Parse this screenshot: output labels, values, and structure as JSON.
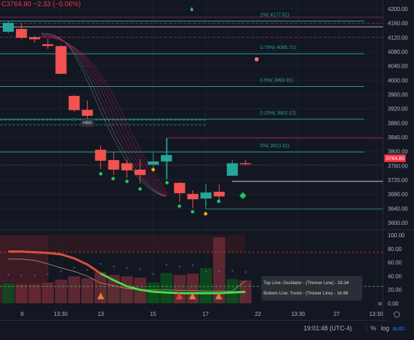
{
  "header": {
    "legend_text": "C3764.80 −2.33 (−0.06%)"
  },
  "colors": {
    "up": "#26a69a",
    "down": "#f05350",
    "fib": "#26a69a",
    "bg": "#131722"
  },
  "price_axis": {
    "ticks": [
      "4200.00",
      "4160.00",
      "4120.00",
      "4080.00",
      "4040.00",
      "4000.00",
      "3960.00",
      "3920.00",
      "3880.00",
      "3840.00",
      "3800.00",
      "3760.00",
      "3720.00",
      "3680.00",
      "3640.00",
      "3600.00"
    ],
    "current_price": "3764.80"
  },
  "osc_axis": {
    "ticks": [
      "100.00",
      "80.00",
      "60.00",
      "40.00",
      "20.00",
      "0.00"
    ]
  },
  "time_axis": {
    "ticks": [
      "8",
      "13:30",
      "13",
      "15",
      "17",
      "22",
      "13:30",
      "27",
      "13:30"
    ]
  },
  "fib_levels": [
    {
      "label": "1%( 4177.51)",
      "price": 4177.51
    },
    {
      "label": "0.75%( 4085.71)",
      "price": 4085.71
    },
    {
      "label": "0.5%( 3993.91)",
      "price": 3993.91
    },
    {
      "label": "0.25%( 3902.12)",
      "price": 3902.12
    },
    {
      "label": "0%( 3810.32)",
      "price": 3810.32
    }
  ],
  "marker_label": "HBD",
  "chart_data": {
    "type": "candlestick",
    "ylim": [
      3580,
      4220
    ],
    "candles": [
      {
        "o": 4136,
        "h": 4165,
        "l": 4132,
        "c": 4161
      },
      {
        "o": 4144,
        "h": 4159,
        "l": 4115,
        "c": 4119
      },
      {
        "o": 4121,
        "h": 4125,
        "l": 4105,
        "c": 4115
      },
      {
        "o": 4101,
        "h": 4117,
        "l": 4088,
        "c": 4096
      },
      {
        "o": 4096,
        "h": 4098,
        "l": 4018,
        "c": 4018
      },
      {
        "o": 3956,
        "h": 3958,
        "l": 3912,
        "c": 3916
      },
      {
        "o": 3917,
        "h": 3943,
        "l": 3892,
        "c": 3900
      },
      {
        "o": 3805,
        "h": 3817,
        "l": 3751,
        "c": 3774
      },
      {
        "o": 3776,
        "h": 3799,
        "l": 3734,
        "c": 3749
      },
      {
        "o": 3767,
        "h": 3778,
        "l": 3726,
        "c": 3747
      },
      {
        "o": 3749,
        "h": 3778,
        "l": 3710,
        "c": 3734
      },
      {
        "o": 3763,
        "h": 3796,
        "l": 3745,
        "c": 3772
      },
      {
        "o": 3772,
        "h": 3838,
        "l": 3722,
        "c": 3790
      },
      {
        "o": 3712,
        "h": 3714,
        "l": 3658,
        "c": 3683
      },
      {
        "o": 3681,
        "h": 3691,
        "l": 3641,
        "c": 3666
      },
      {
        "o": 3668,
        "h": 3709,
        "l": 3645,
        "c": 3685
      },
      {
        "o": 3687,
        "h": 3707,
        "l": 3664,
        "c": 3674
      },
      {
        "o": 3732,
        "h": 3776,
        "l": 3732,
        "c": 3767
      },
      {
        "o": 3767,
        "h": 3776,
        "l": 3761,
        "c": 3765
      }
    ],
    "oscillator": {
      "ylim": [
        0,
        100
      ],
      "bars": [
        30,
        29,
        29,
        31,
        35,
        40,
        37,
        46,
        42,
        40,
        38,
        31,
        45,
        42,
        44,
        52,
        97,
        36,
        34
      ],
      "bar_up": [
        true,
        false,
        false,
        false,
        false,
        false,
        false,
        false,
        false,
        false,
        false,
        true,
        true,
        false,
        false,
        true,
        false,
        true,
        false
      ],
      "oscillator_line": [
        65,
        65,
        63,
        58,
        52,
        47,
        40,
        30,
        26,
        22,
        20,
        20,
        20,
        19,
        19,
        18,
        18,
        18,
        33
      ],
      "trend_line": [
        76,
        76,
        75,
        74,
        72,
        66,
        57,
        44,
        34,
        25,
        20,
        17,
        16,
        15,
        15,
        15,
        15,
        16,
        17
      ],
      "overbought": 75,
      "oversold": 25
    },
    "tooltip": [
      "Top Line: Oscillator - (Thinner Line) - 33.34",
      "Bottom Line: Trend - (Thicker Line) - 16.98"
    ]
  },
  "footer": {
    "time": "19:01:48 (UTC-4)",
    "percent": "%",
    "log": "log",
    "auto": "auto"
  }
}
